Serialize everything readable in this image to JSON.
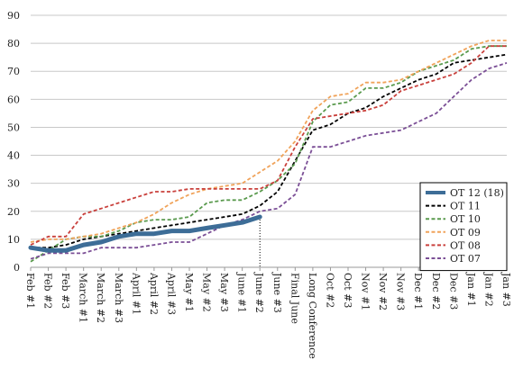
{
  "chart_data": {
    "type": "line",
    "title": "",
    "xlabel": "",
    "ylabel": "",
    "ylim": [
      0,
      90
    ],
    "yticks": [
      0,
      10,
      20,
      30,
      40,
      50,
      60,
      70,
      80,
      90
    ],
    "grid": "horizontal",
    "legend_position": "bottom-right",
    "categories": [
      "Feb #1",
      "Feb #2",
      "Feb #3",
      "March #1",
      "March #2",
      "March #3",
      "April #1",
      "April #2",
      "April #3",
      "May #1",
      "May #2",
      "May #3",
      "June #1",
      "June #2",
      "June #3",
      "Final June",
      "Long Conference",
      "Oct #2",
      "Oct #3",
      "Nov #1",
      "Nov #2",
      "Nov #3",
      "Dec #1",
      "Dec #2",
      "Dec #3",
      "Jan #1",
      "Jan #2",
      "Jan #3"
    ],
    "marker_line": {
      "category": "June #2",
      "value": 18
    },
    "series": [
      {
        "name": "OT 12 (18)",
        "color": "#3d6d97",
        "style": "solid",
        "values": [
          7,
          6,
          6,
          8,
          9,
          11,
          12,
          12,
          13,
          13,
          14,
          15,
          16,
          18,
          null,
          null,
          null,
          null,
          null,
          null,
          null,
          null,
          null,
          null,
          null,
          null,
          null,
          null
        ]
      },
      {
        "name": "OT 11",
        "color": "#000000",
        "style": "dashed",
        "values": [
          7,
          7,
          8,
          10,
          11,
          12,
          13,
          14,
          15,
          16,
          17,
          18,
          19,
          22,
          27,
          38,
          49,
          51,
          55,
          57,
          61,
          64,
          67,
          69,
          73,
          74,
          75,
          76
        ]
      },
      {
        "name": "OT 10",
        "color": "#5a9a4e",
        "style": "dashed",
        "values": [
          2,
          6,
          10,
          11,
          11,
          13,
          16,
          17,
          17,
          18,
          23,
          24,
          24,
          27,
          31,
          37,
          52,
          58,
          59,
          64,
          64,
          66,
          70,
          72,
          74,
          78,
          79,
          79
        ]
      },
      {
        "name": "OT 09",
        "color": "#f0a35a",
        "style": "dashed",
        "values": [
          9,
          10,
          10,
          11,
          12,
          14,
          16,
          19,
          23,
          26,
          28,
          29,
          30,
          34,
          38,
          45,
          56,
          61,
          62,
          66,
          66,
          67,
          70,
          73,
          76,
          79,
          81,
          81
        ]
      },
      {
        "name": "OT 08",
        "color": "#c9403c",
        "style": "dashed",
        "values": [
          8,
          11,
          11,
          19,
          21,
          23,
          25,
          27,
          27,
          28,
          28,
          28,
          28,
          28,
          31,
          43,
          53,
          54,
          55,
          56,
          58,
          63,
          65,
          67,
          69,
          73,
          79,
          79
        ]
      },
      {
        "name": "OT 07",
        "color": "#7b4f96",
        "style": "dashed",
        "values": [
          3,
          5,
          5,
          5,
          7,
          7,
          7,
          8,
          9,
          9,
          12,
          15,
          17,
          20,
          21,
          26,
          43,
          43,
          45,
          47,
          48,
          49,
          52,
          55,
          61,
          67,
          71,
          73
        ]
      }
    ]
  }
}
